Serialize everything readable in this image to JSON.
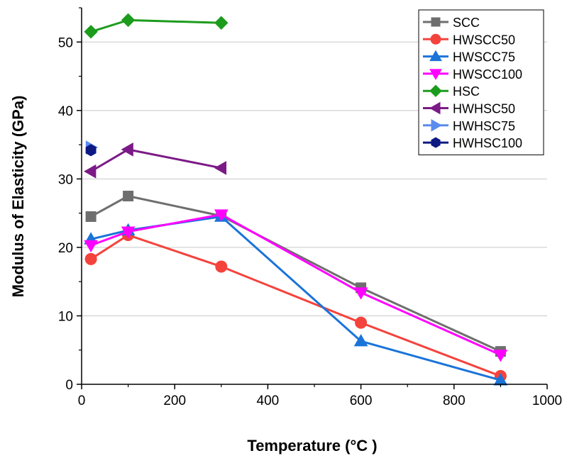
{
  "chart_data": {
    "type": "line",
    "xlabel": "Temperature (°C )",
    "ylabel": "Modulus of Elasticity (GPa)",
    "xlim": [
      0,
      1000
    ],
    "ylim": [
      0,
      55
    ],
    "xticks": [
      0,
      200,
      400,
      600,
      800,
      1000
    ],
    "yticks": [
      0,
      10,
      20,
      30,
      40,
      50
    ],
    "grid": "horizontal",
    "legend_position": "top-right",
    "series": [
      {
        "name": "SCC",
        "color": "#6e6e6e",
        "marker": "square",
        "x": [
          20,
          100,
          300,
          600,
          900
        ],
        "y": [
          24.5,
          27.5,
          24.6,
          14.1,
          4.8
        ]
      },
      {
        "name": "HWSCC50",
        "color": "#f4433c",
        "marker": "circle",
        "x": [
          20,
          100,
          300,
          600,
          900
        ],
        "y": [
          18.3,
          21.8,
          17.2,
          9.0,
          1.2
        ]
      },
      {
        "name": "HWSCC75",
        "color": "#1a74d9",
        "marker": "triangle-up",
        "x": [
          20,
          100,
          300,
          600,
          900
        ],
        "y": [
          21.2,
          22.5,
          24.5,
          6.3,
          0.6
        ]
      },
      {
        "name": "HWSCC100",
        "color": "#ff00ff",
        "marker": "triangle-down",
        "x": [
          20,
          100,
          300,
          600,
          900
        ],
        "y": [
          20.3,
          22.3,
          24.8,
          13.4,
          4.3
        ]
      },
      {
        "name": "HSC",
        "color": "#1c9c1c",
        "marker": "diamond",
        "x": [
          20,
          100,
          300
        ],
        "y": [
          51.5,
          53.2,
          52.8
        ]
      },
      {
        "name": "HWHSC50",
        "color": "#7b1a86",
        "marker": "triangle-left",
        "x": [
          20,
          100,
          300
        ],
        "y": [
          31.1,
          34.3,
          31.6
        ]
      },
      {
        "name": "HWHSC75",
        "color": "#5a8cf0",
        "marker": "triangle-right",
        "x": [
          20
        ],
        "y": [
          34.6
        ]
      },
      {
        "name": "HWHSC100",
        "color": "#0d1a82",
        "marker": "hexagon",
        "x": [
          20
        ],
        "y": [
          34.2
        ]
      }
    ]
  }
}
